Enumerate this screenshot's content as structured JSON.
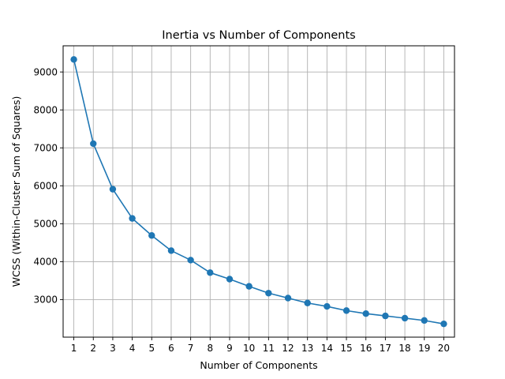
{
  "chart_data": {
    "type": "line",
    "title": "Inertia vs Number of Components",
    "xlabel": "Number of Components",
    "ylabel": "WCSS (Within-Cluster Sum of Squares)",
    "x": [
      1,
      2,
      3,
      4,
      5,
      6,
      7,
      8,
      9,
      10,
      11,
      12,
      13,
      14,
      15,
      16,
      17,
      18,
      19,
      20
    ],
    "series": [
      {
        "values": [
          9330,
          7110,
          5910,
          5140,
          4690,
          4290,
          4040,
          3710,
          3540,
          3350,
          3170,
          3040,
          2910,
          2820,
          2710,
          2630,
          2570,
          2510,
          2450,
          2360
        ]
      }
    ],
    "xlim": [
      0.45,
      20.55
    ],
    "ylim": [
      2010,
      9690
    ],
    "xticks": [
      "1",
      "2",
      "3",
      "4",
      "5",
      "6",
      "7",
      "8",
      "9",
      "10",
      "11",
      "12",
      "13",
      "14",
      "15",
      "16",
      "17",
      "18",
      "19",
      "20"
    ],
    "yticks": [
      3000,
      4000,
      5000,
      6000,
      7000,
      8000,
      9000
    ],
    "grid": true,
    "markers": true,
    "color": "#1f77b4"
  }
}
